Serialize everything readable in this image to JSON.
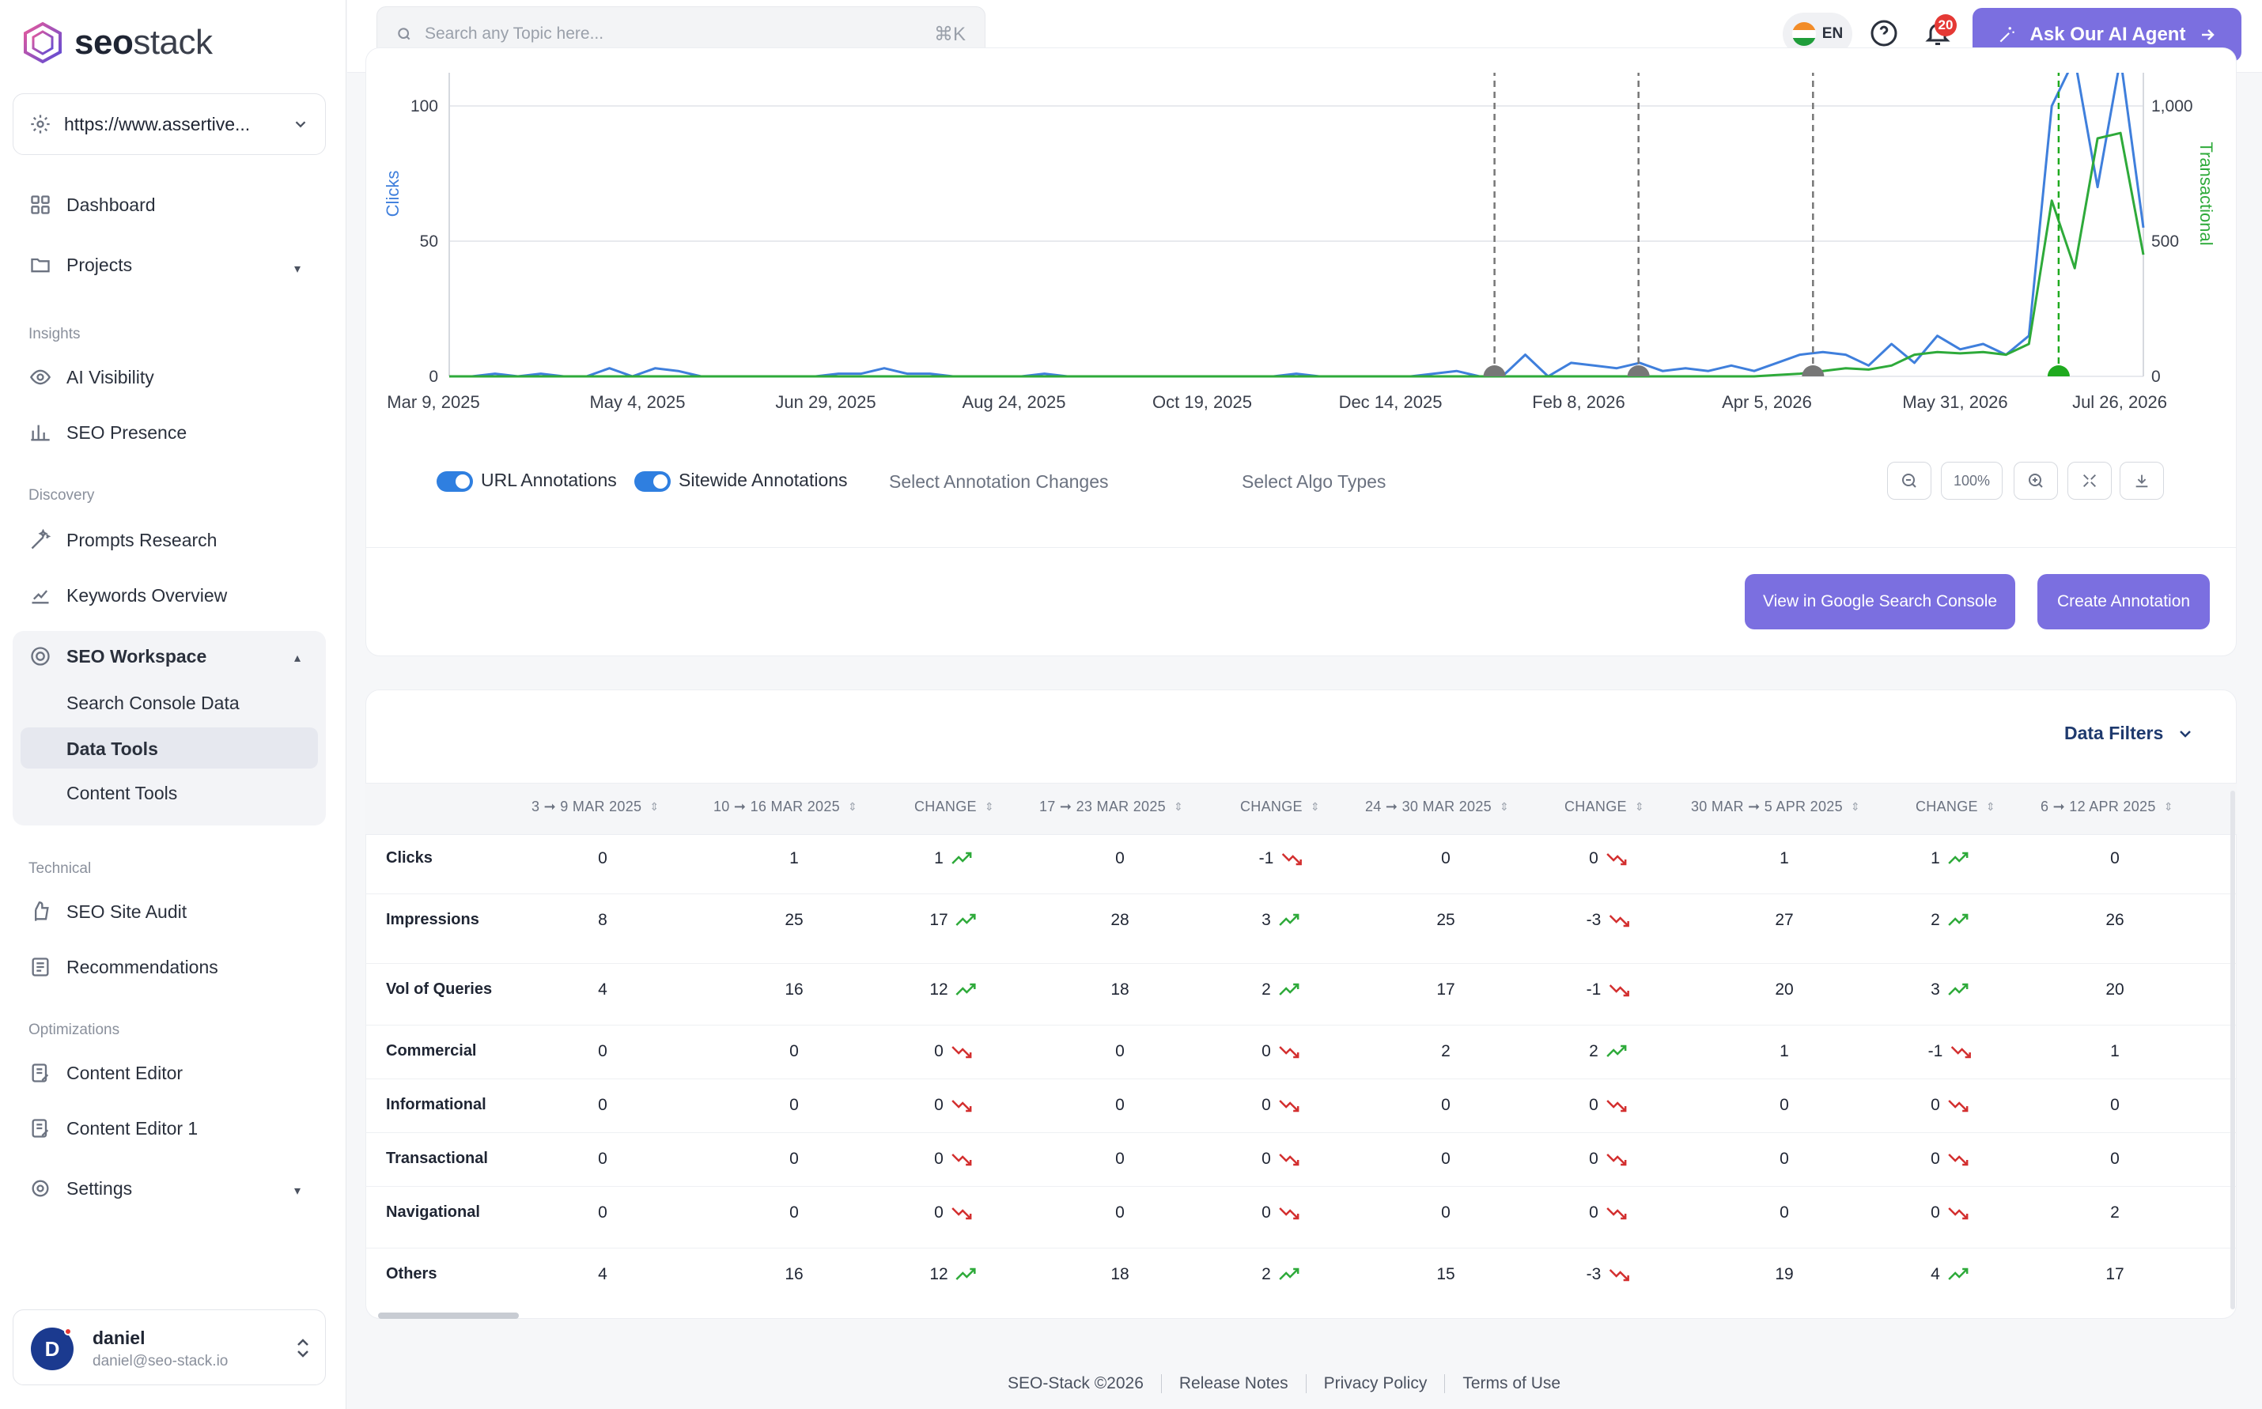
{
  "brand": {
    "logo_bold": "seo",
    "logo_light": "stack"
  },
  "site": {
    "url": "https://www.assertive..."
  },
  "nav": {
    "dashboard": "Dashboard",
    "projects": "Projects",
    "insights_label": "Insights",
    "ai_visibility": "AI Visibility",
    "seo_presence": "SEO Presence",
    "discovery_label": "Discovery",
    "prompts_research": "Prompts Research",
    "keywords_overview": "Keywords Overview",
    "seo_workspace": "SEO Workspace",
    "search_console_data": "Search Console Data",
    "data_tools": "Data Tools",
    "content_tools": "Content Tools",
    "technical_label": "Technical",
    "seo_site_audit": "SEO Site Audit",
    "recommendations": "Recommendations",
    "optimizations_label": "Optimizations",
    "content_editor": "Content Editor",
    "content_editor_1": "Content Editor 1",
    "settings": "Settings"
  },
  "user": {
    "initial": "D",
    "name": "daniel",
    "email": "daniel@seo-stack.io"
  },
  "topbar": {
    "search_placeholder": "Search any Topic here...",
    "shortcut": "⌘K",
    "lang": "EN",
    "notifications": "20",
    "ai_agent": "Ask Our AI Agent"
  },
  "chart_data": {
    "type": "line",
    "ylabel": "Clicks",
    "y2label": "Transactional",
    "y_ticks": [
      "0",
      "50",
      "100"
    ],
    "y2_ticks": [
      "0",
      "500",
      "1,000"
    ],
    "x_ticks": [
      "Mar 9, 2025",
      "May 4, 2025",
      "Jun 29, 2025",
      "Aug 24, 2025",
      "Oct 19, 2025",
      "Dec 14, 2025",
      "Feb 8, 2026",
      "Apr 5, 2026",
      "May 31, 2026",
      "Jul 26, 2026"
    ],
    "ylim": [
      0,
      100
    ],
    "y2lim": [
      0,
      1000
    ],
    "series": [
      {
        "name": "Clicks",
        "color": "#3f7fdc",
        "axis": "left",
        "values": [
          0,
          0,
          1,
          0,
          1,
          0,
          0,
          3,
          0,
          3,
          2,
          0,
          0,
          0,
          0,
          0,
          0,
          1,
          1,
          3,
          1,
          1,
          0,
          0,
          0,
          0,
          1,
          0,
          0,
          0,
          0,
          0,
          0,
          0,
          0,
          0,
          0,
          1,
          0,
          0,
          0,
          0,
          0,
          1,
          2,
          0,
          0,
          8,
          0,
          5,
          4,
          3,
          5,
          2,
          3,
          2,
          4,
          2,
          5,
          8,
          9,
          8,
          4,
          12,
          5,
          15,
          10,
          12,
          8,
          15,
          100,
          125,
          70,
          130,
          55
        ]
      },
      {
        "name": "Transactional",
        "color": "#2eaa3a",
        "axis": "right",
        "values": [
          0,
          0,
          0,
          0,
          0,
          0,
          0,
          0,
          0,
          0,
          0,
          0,
          0,
          0,
          0,
          0,
          0,
          0,
          0,
          0,
          0,
          0,
          0,
          0,
          0,
          0,
          0,
          0,
          0,
          0,
          0,
          0,
          0,
          0,
          0,
          0,
          0,
          0,
          0,
          0,
          0,
          0,
          0,
          0,
          0,
          0,
          0,
          0,
          0,
          0,
          0,
          0,
          0,
          0,
          0,
          0,
          0,
          0,
          5,
          10,
          20,
          30,
          25,
          40,
          80,
          90,
          85,
          90,
          80,
          120,
          650,
          400,
          880,
          900,
          450
        ]
      }
    ],
    "annotations": [
      {
        "x_frac": 0.617,
        "color": "#777"
      },
      {
        "x_frac": 0.702,
        "color": "#777"
      },
      {
        "x_frac": 0.805,
        "color": "#777"
      },
      {
        "x_frac": 0.95,
        "color": "#1faa1f"
      }
    ],
    "grid": true
  },
  "controls": {
    "url_annotations": "URL Annotations",
    "sitewide_annotations": "Sitewide Annotations",
    "annotation_changes": "Select Annotation Changes",
    "algo_types": "Select Algo Types",
    "zoom": "100%"
  },
  "buttons": {
    "gsc": "View in Google Search Console",
    "create": "Create Annotation"
  },
  "table": {
    "filters": "Data Filters",
    "headers": [
      "3 ➞ 9 MAR 2025",
      "10 ➞ 16 MAR 2025",
      "CHANGE",
      "17 ➞ 23 MAR 2025",
      "CHANGE",
      "24 ➞ 30 MAR 2025",
      "CHANGE",
      "30 MAR ➞ 5 APR 2025",
      "CHANGE",
      "6 ➞ 12 APR 2025"
    ],
    "rows": [
      {
        "label": "Clicks",
        "cells": [
          "0",
          "1",
          "1",
          "0",
          "-1",
          "0",
          "0",
          "1",
          "1",
          "0"
        ],
        "trend": [
          "up",
          "down",
          "down",
          "up"
        ]
      },
      {
        "label": "Impressions",
        "cells": [
          "8",
          "25",
          "17",
          "28",
          "3",
          "25",
          "-3",
          "27",
          "2",
          "26"
        ],
        "trend": [
          "up",
          "up",
          "down",
          "up"
        ]
      },
      {
        "label": "Vol of Queries",
        "cells": [
          "4",
          "16",
          "12",
          "18",
          "2",
          "17",
          "-1",
          "20",
          "3",
          "20"
        ],
        "trend": [
          "up",
          "up",
          "down",
          "up"
        ]
      },
      {
        "label": "Commercial",
        "cells": [
          "0",
          "0",
          "0",
          "0",
          "0",
          "2",
          "2",
          "1",
          "-1",
          "1"
        ],
        "trend": [
          "down",
          "down",
          "up",
          "down"
        ]
      },
      {
        "label": "Informational",
        "cells": [
          "0",
          "0",
          "0",
          "0",
          "0",
          "0",
          "0",
          "0",
          "0",
          "0"
        ],
        "trend": [
          "down",
          "down",
          "down",
          "down"
        ]
      },
      {
        "label": "Transactional",
        "cells": [
          "0",
          "0",
          "0",
          "0",
          "0",
          "0",
          "0",
          "0",
          "0",
          "0"
        ],
        "trend": [
          "down",
          "down",
          "down",
          "down"
        ]
      },
      {
        "label": "Navigational",
        "cells": [
          "0",
          "0",
          "0",
          "0",
          "0",
          "0",
          "0",
          "0",
          "0",
          "2"
        ],
        "trend": [
          "down",
          "down",
          "down",
          "down"
        ]
      },
      {
        "label": "Others",
        "cells": [
          "4",
          "16",
          "12",
          "18",
          "2",
          "15",
          "-3",
          "19",
          "4",
          "17"
        ],
        "trend": [
          "up",
          "up",
          "down",
          "up"
        ]
      }
    ]
  },
  "footer": {
    "copyright": "SEO-Stack ©2026",
    "release": "Release Notes",
    "privacy": "Privacy Policy",
    "terms": "Terms of Use"
  }
}
